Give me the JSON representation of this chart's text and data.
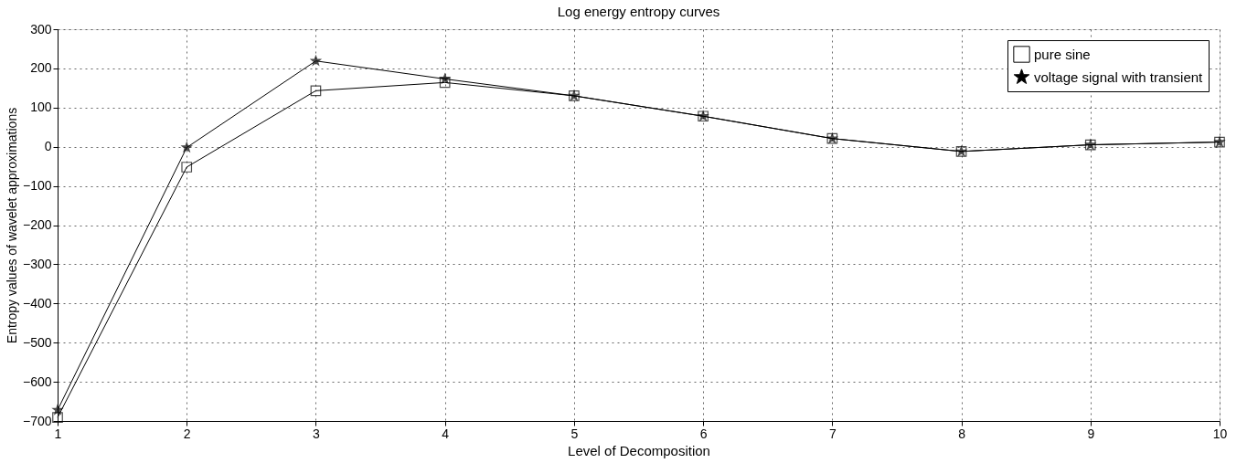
{
  "chart_data": {
    "type": "line",
    "title": "Log energy entropy curves",
    "xlabel": "Level of Decomposition",
    "ylabel": "Entropy values of wavelet approximations",
    "x": [
      1,
      2,
      3,
      4,
      5,
      6,
      7,
      8,
      9,
      10
    ],
    "series": [
      {
        "name": "pure sine",
        "color": "#000000",
        "marker": "square",
        "values": [
          -691,
          -52,
          143,
          164,
          130,
          78,
          21,
          -12,
          5,
          12
        ]
      },
      {
        "name": "voltage signal with transient",
        "color": "#000000",
        "marker": "star",
        "values": [
          -672,
          -2,
          219,
          173,
          130,
          78,
          21,
          -12,
          5,
          12
        ]
      }
    ],
    "xlim": [
      1,
      10
    ],
    "xticks": [
      1,
      2,
      3,
      4,
      5,
      6,
      7,
      8,
      9,
      10
    ],
    "ylim": [
      -700,
      300
    ],
    "yticks": [
      -700,
      -600,
      -500,
      -400,
      -300,
      -200,
      -100,
      0,
      100,
      200,
      300
    ],
    "grid": true,
    "legend": "top right",
    "line_style": "solid"
  }
}
